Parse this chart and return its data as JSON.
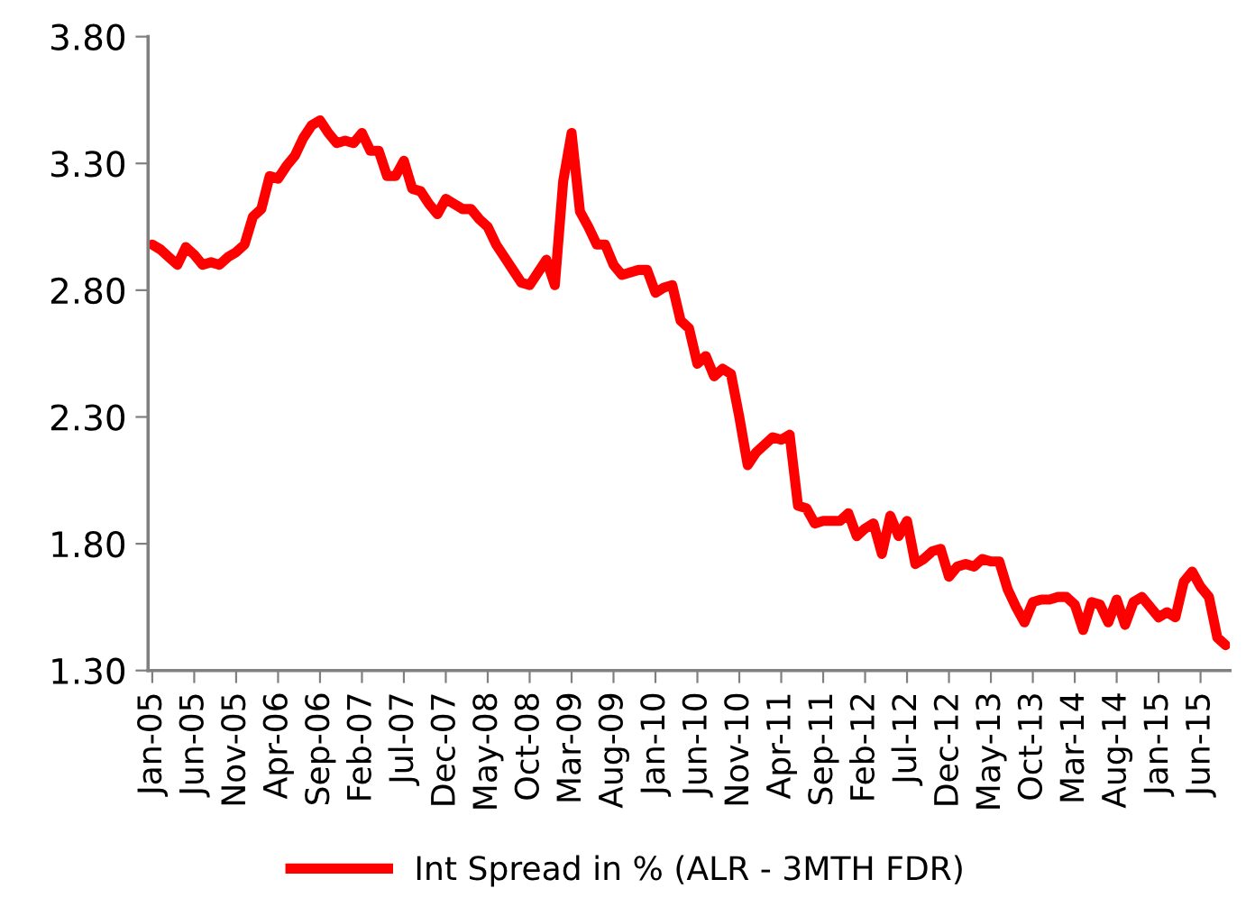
{
  "chart_data": {
    "type": "line",
    "categories": [
      "Jan-05",
      null,
      null,
      null,
      null,
      "Jun-05",
      null,
      null,
      null,
      null,
      "Nov-05",
      null,
      null,
      null,
      null,
      "Apr-06",
      null,
      null,
      null,
      null,
      "Sep-06",
      null,
      null,
      null,
      null,
      "Feb-07",
      null,
      null,
      null,
      null,
      "Jul-07",
      null,
      null,
      null,
      null,
      "Dec-07",
      null,
      null,
      null,
      null,
      "May-08",
      null,
      null,
      null,
      null,
      "Oct-08",
      null,
      null,
      null,
      null,
      "Mar-09",
      null,
      null,
      null,
      null,
      "Aug-09",
      null,
      null,
      null,
      null,
      "Jan-10",
      null,
      null,
      null,
      null,
      "Jun-10",
      null,
      null,
      null,
      null,
      "Nov-10",
      null,
      null,
      null,
      null,
      "Apr-11",
      null,
      null,
      null,
      null,
      "Sep-11",
      null,
      null,
      null,
      null,
      "Feb-12",
      null,
      null,
      null,
      null,
      "Jul-12",
      null,
      null,
      null,
      null,
      "Dec-12",
      null,
      null,
      null,
      null,
      "May-13",
      null,
      null,
      null,
      null,
      "Oct-13",
      null,
      null,
      null,
      null,
      "Mar-14",
      null,
      null,
      null,
      null,
      "Aug-14",
      null,
      null,
      null,
      null,
      "Jan-15",
      null,
      null,
      null,
      null,
      "Jun-15",
      null,
      null,
      null
    ],
    "series": [
      {
        "name": "Int Spread in % (ALR - 3MTH FDR)",
        "color": "#ff0000",
        "values": [
          2.98,
          2.96,
          2.93,
          2.9,
          2.97,
          2.94,
          2.9,
          2.91,
          2.9,
          2.93,
          2.95,
          2.98,
          3.09,
          3.12,
          3.25,
          3.24,
          3.29,
          3.33,
          3.4,
          3.45,
          3.47,
          3.42,
          3.38,
          3.39,
          3.38,
          3.42,
          3.35,
          3.35,
          3.25,
          3.25,
          3.31,
          3.2,
          3.19,
          3.14,
          3.1,
          3.16,
          3.14,
          3.12,
          3.12,
          3.08,
          3.05,
          2.98,
          2.93,
          2.88,
          2.83,
          2.82,
          2.87,
          2.92,
          2.82,
          3.23,
          3.42,
          3.11,
          3.05,
          2.98,
          2.98,
          2.9,
          2.86,
          2.87,
          2.88,
          2.88,
          2.79,
          2.81,
          2.82,
          2.68,
          2.65,
          2.51,
          2.54,
          2.46,
          2.49,
          2.47,
          2.3,
          2.11,
          2.16,
          2.19,
          2.22,
          2.21,
          2.23,
          1.95,
          1.94,
          1.88,
          1.89,
          1.89,
          1.89,
          1.92,
          1.83,
          1.86,
          1.88,
          1.76,
          1.91,
          1.83,
          1.89,
          1.72,
          1.74,
          1.77,
          1.78,
          1.67,
          1.71,
          1.72,
          1.71,
          1.74,
          1.73,
          1.73,
          1.62,
          1.55,
          1.49,
          1.57,
          1.58,
          1.58,
          1.59,
          1.59,
          1.56,
          1.46,
          1.57,
          1.56,
          1.49,
          1.58,
          1.48,
          1.57,
          1.59,
          1.55,
          1.51,
          1.53,
          1.51,
          1.65,
          1.69,
          1.63,
          1.59,
          1.43,
          1.4
        ]
      }
    ],
    "ylim": [
      1.3,
      3.8
    ],
    "yticks": [
      {
        "value": 1.3,
        "label": "1.30"
      },
      {
        "value": 1.8,
        "label": "1.80"
      },
      {
        "value": 2.3,
        "label": "2.30"
      },
      {
        "value": 2.8,
        "label": "2.80"
      },
      {
        "value": 3.3,
        "label": "3.30"
      },
      {
        "value": 3.8,
        "label": "3.80"
      }
    ],
    "legend": "bottom",
    "grid": false,
    "line_style": "solid"
  }
}
